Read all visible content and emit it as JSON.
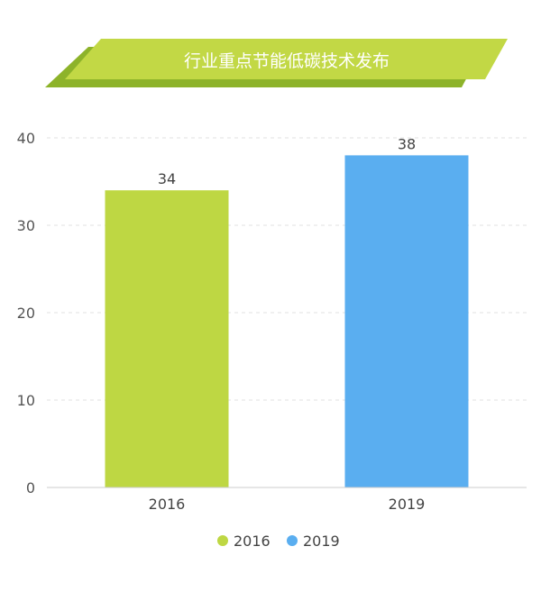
{
  "banner": {
    "title": "行业重点节能低碳技术发布",
    "color_main": "#c2d845",
    "color_shadow": "#8db32a"
  },
  "chart_data": {
    "type": "bar",
    "title": "行业重点节能低碳技术发布",
    "categories": [
      "2016",
      "2019"
    ],
    "values": [
      34,
      38
    ],
    "colors": [
      "#bed743",
      "#5aaef0"
    ],
    "ylim": [
      0,
      40
    ],
    "yticks": [
      0,
      10,
      20,
      30,
      40
    ],
    "grid": true,
    "data_labels": true,
    "legend": {
      "position": "bottom",
      "entries": [
        {
          "label": "2016",
          "color": "#bed743"
        },
        {
          "label": "2019",
          "color": "#5aaef0"
        }
      ]
    }
  }
}
